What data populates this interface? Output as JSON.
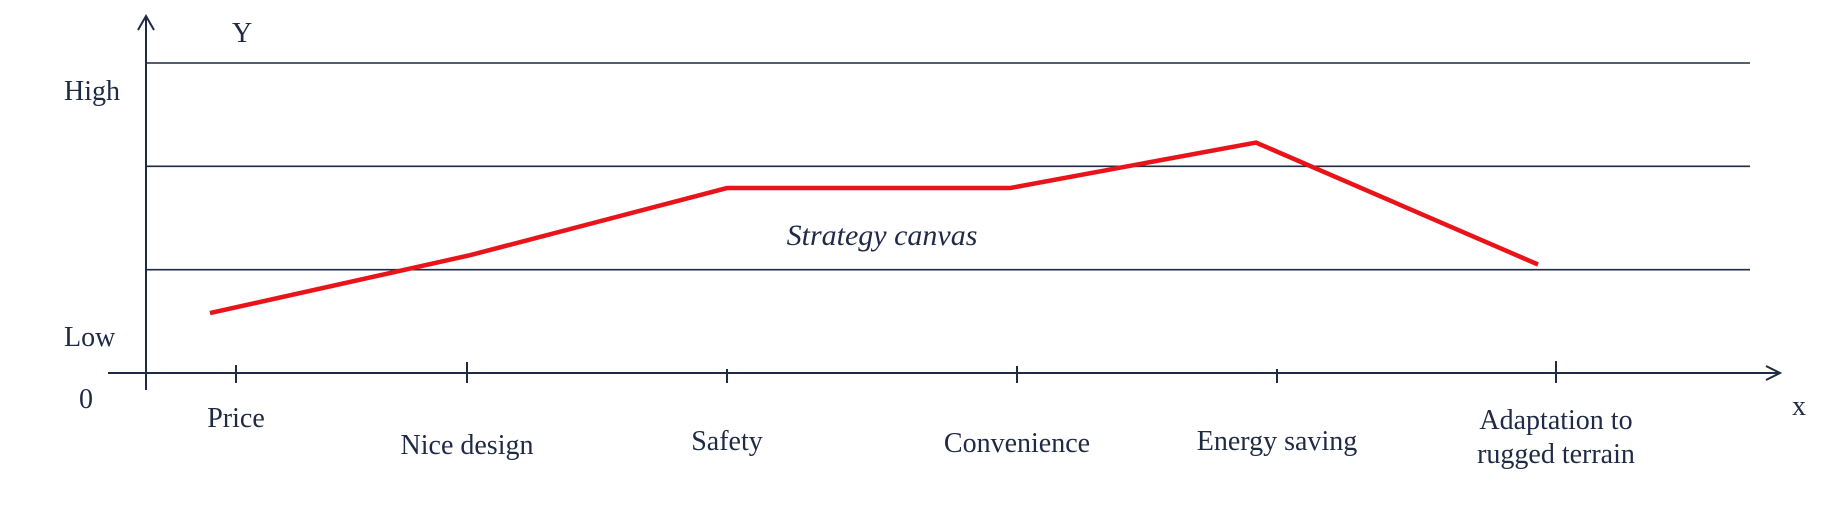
{
  "chart_data": {
    "type": "line",
    "title": "Strategy canvas",
    "xlabel": "x",
    "ylabel": "Y",
    "origin_label": "0",
    "y_level_labels": {
      "low": "Low",
      "high": "High"
    },
    "ylim": [
      0,
      3
    ],
    "grid": true,
    "gridlines": [
      1,
      2,
      3
    ],
    "categories": [
      "Price",
      "Nice design",
      "Safety",
      "Convenience",
      "Energy saving",
      "Adaptation to rugged terrain"
    ],
    "category_lines": [
      [
        "Price"
      ],
      [
        "Nice design"
      ],
      [
        "Safety"
      ],
      [
        "Convenience"
      ],
      [
        "Energy saving"
      ],
      [
        "Adaptation to",
        "rugged terrain"
      ]
    ],
    "series": [
      {
        "points": [
          {
            "x": "Price",
            "y": 0.58
          },
          {
            "x": "Nice design",
            "y": 1.14
          },
          {
            "x": "Safety",
            "y": 1.79
          },
          {
            "x": "Convenience",
            "y": 1.79
          },
          {
            "x": "Energy saving",
            "y": 2.23
          },
          {
            "x": "Adaptation to rugged terrain",
            "y": 1.05
          }
        ]
      }
    ],
    "colors": {
      "line": "#e8141a",
      "axis": "#1f2a44",
      "grid": "#1f2a44",
      "text": "#1f2a44"
    }
  }
}
